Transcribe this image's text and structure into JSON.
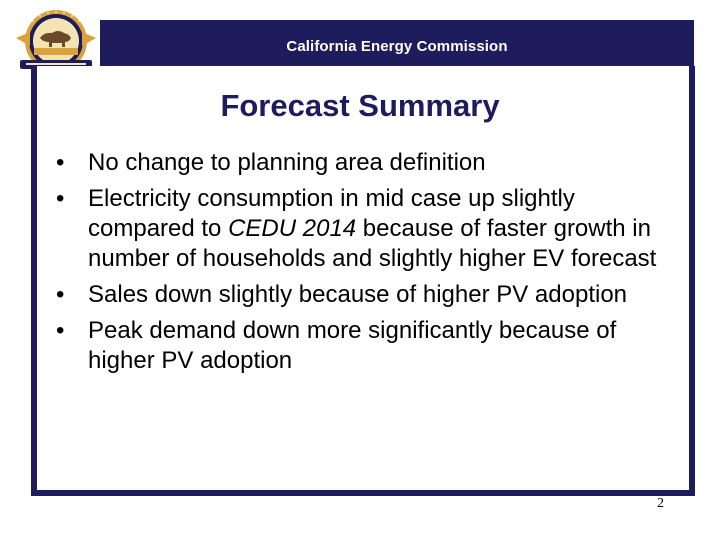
{
  "header": {
    "title": "California Energy Commission"
  },
  "slide": {
    "title": "Forecast Summary",
    "bullets": [
      {
        "text": "No change to planning area definition"
      },
      {
        "pre": "Electricity consumption in mid case up slightly compared to ",
        "em": "CEDU 2014",
        "post": " because of faster growth in number of households and slightly higher EV forecast"
      },
      {
        "text": "Sales down slightly because of higher PV adoption"
      },
      {
        "text": "Peak demand down more significantly because of higher PV adoption"
      }
    ],
    "page_number": "2"
  },
  "colors": {
    "brand_navy": "#1f1c5e",
    "seal_gold": "#d9a33a"
  },
  "icons": {
    "logo": "california-energy-commission-seal-icon"
  }
}
